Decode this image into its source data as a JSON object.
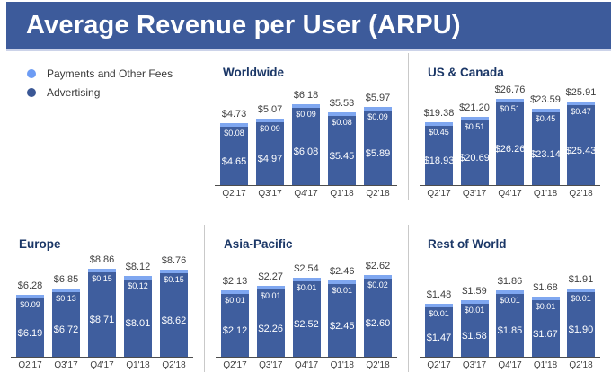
{
  "header": {
    "title": "Average Revenue per User (ARPU)"
  },
  "legend": {
    "items": [
      {
        "label": "Payments and Other Fees",
        "color": "#6d9cf4"
      },
      {
        "label": "Advertising",
        "color": "#3a5795"
      }
    ]
  },
  "colors": {
    "header_bg": "#3d5b9b",
    "bar_advertising": "#3f5e9e",
    "bar_payments": "#7fa7f0",
    "panel_title": "#1b3767",
    "label_text": "#3f3f3f",
    "axis_line": "#4d4d4d",
    "divider": "#c9c9c9"
  },
  "chart_data": [
    {
      "type": "bar",
      "title": "Worldwide",
      "categories": [
        "Q2'17",
        "Q3'17",
        "Q4'17",
        "Q1'18",
        "Q2'18"
      ],
      "series": [
        {
          "name": "Payments and Other Fees",
          "values": [
            0.08,
            0.09,
            0.09,
            0.08,
            0.09
          ]
        },
        {
          "name": "Advertising",
          "values": [
            4.65,
            4.97,
            6.08,
            5.45,
            5.89
          ]
        }
      ],
      "totals": [
        4.73,
        5.07,
        6.18,
        5.53,
        5.97
      ],
      "stacked": true,
      "value_prefix": "$"
    },
    {
      "type": "bar",
      "title": "US & Canada",
      "categories": [
        "Q2'17",
        "Q3'17",
        "Q4'17",
        "Q1'18",
        "Q2'18"
      ],
      "series": [
        {
          "name": "Payments and Other Fees",
          "values": [
            0.45,
            0.51,
            0.51,
            0.45,
            0.47
          ]
        },
        {
          "name": "Advertising",
          "values": [
            18.93,
            20.69,
            26.26,
            23.14,
            25.43
          ]
        }
      ],
      "totals": [
        19.38,
        21.2,
        26.76,
        23.59,
        25.91
      ],
      "stacked": true,
      "value_prefix": "$"
    },
    {
      "type": "bar",
      "title": "Europe",
      "categories": [
        "Q2'17",
        "Q3'17",
        "Q4'17",
        "Q1'18",
        "Q2'18"
      ],
      "series": [
        {
          "name": "Payments and Other Fees",
          "values": [
            0.09,
            0.13,
            0.15,
            0.12,
            0.15
          ]
        },
        {
          "name": "Advertising",
          "values": [
            6.19,
            6.72,
            8.71,
            8.01,
            8.62
          ]
        }
      ],
      "totals": [
        6.28,
        6.85,
        8.86,
        8.12,
        8.76
      ],
      "stacked": true,
      "value_prefix": "$"
    },
    {
      "type": "bar",
      "title": "Asia-Pacific",
      "categories": [
        "Q2'17",
        "Q3'17",
        "Q4'17",
        "Q1'18",
        "Q2'18"
      ],
      "series": [
        {
          "name": "Payments and Other Fees",
          "values": [
            0.01,
            0.01,
            0.01,
            0.01,
            0.02
          ]
        },
        {
          "name": "Advertising",
          "values": [
            2.12,
            2.26,
            2.52,
            2.45,
            2.6
          ]
        }
      ],
      "totals": [
        2.13,
        2.27,
        2.54,
        2.46,
        2.62
      ],
      "stacked": true,
      "value_prefix": "$"
    },
    {
      "type": "bar",
      "title": "Rest of World",
      "categories": [
        "Q2'17",
        "Q3'17",
        "Q4'17",
        "Q1'18",
        "Q2'18"
      ],
      "series": [
        {
          "name": "Payments and Other Fees",
          "values": [
            0.01,
            0.01,
            0.01,
            0.01,
            0.01
          ]
        },
        {
          "name": "Advertising",
          "values": [
            1.47,
            1.58,
            1.85,
            1.67,
            1.9
          ]
        }
      ],
      "totals": [
        1.48,
        1.59,
        1.86,
        1.68,
        1.91
      ],
      "stacked": true,
      "value_prefix": "$"
    }
  ]
}
